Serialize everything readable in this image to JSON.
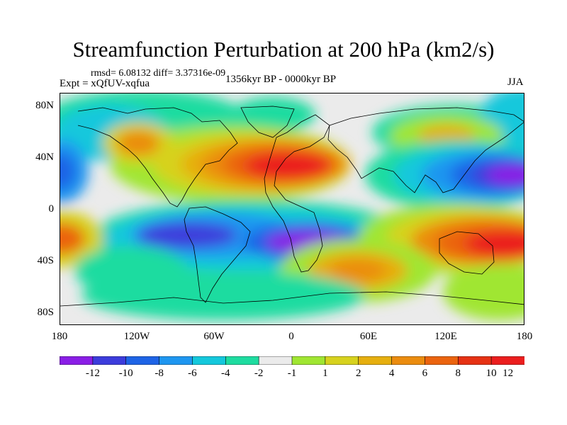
{
  "title": "Streamfunction Perturbation at 200 hPa (km2/s)",
  "stats": "rmsd= 6.08132 diff= 3.37316e-09",
  "experiment": "Expt = xQfUV-xqfua",
  "period": "1356kyr BP - 0000kyr BP",
  "season": "JJA",
  "lat_labels": [
    "80N",
    "40N",
    "0",
    "40S",
    "80S"
  ],
  "lon_labels": [
    "180",
    "120W",
    "60W",
    "0",
    "60E",
    "120E",
    "180"
  ],
  "colorbar": {
    "labels": [
      "-12",
      "-10",
      "-8",
      "-6",
      "-4",
      "-2",
      "-1",
      "1",
      "2",
      "4",
      "6",
      "8",
      "10",
      "12"
    ],
    "colors": [
      "#8a1ee6",
      "#3c3cdc",
      "#1e64e6",
      "#1e96f0",
      "#14c8dc",
      "#1edca0",
      "#ebebeb",
      "#a0e632",
      "#d7d21e",
      "#e6af0f",
      "#eb8c0f",
      "#eb640f",
      "#e63214",
      "#eb1e1e"
    ]
  },
  "field_colors": {
    "background": "#ebebeb",
    "coast": "#000000"
  }
}
